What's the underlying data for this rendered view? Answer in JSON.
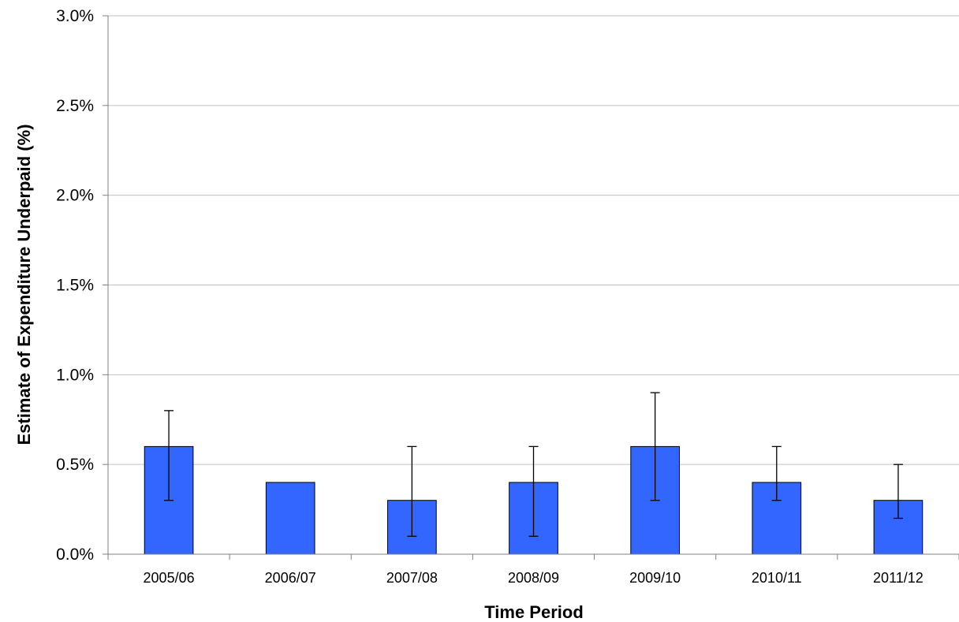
{
  "chart_data": {
    "type": "bar",
    "title": "",
    "xlabel": "Time Period",
    "ylabel": "Estimate of Expenditure Underpaid (%)",
    "categories": [
      "2005/06",
      "2006/07",
      "2007/08",
      "2008/09",
      "2009/10",
      "2010/11",
      "2011/12"
    ],
    "series": [
      {
        "values": [
          0.6,
          0.4,
          0.3,
          0.4,
          0.6,
          0.4,
          0.3
        ],
        "error_low": [
          0.3,
          null,
          0.1,
          0.1,
          0.3,
          0.3,
          0.2
        ],
        "error_high": [
          0.8,
          null,
          0.6,
          0.6,
          0.9,
          0.6,
          0.5
        ]
      }
    ],
    "ylim": [
      0,
      3.0
    ],
    "yticks": [
      "0.0%",
      "0.5%",
      "1.0%",
      "1.5%",
      "2.0%",
      "2.5%",
      "3.0%"
    ],
    "grid": true,
    "legend": "none",
    "colors": {
      "bar": "#3366ff",
      "grid": "#c0c0c0",
      "axis": "#808080"
    }
  }
}
